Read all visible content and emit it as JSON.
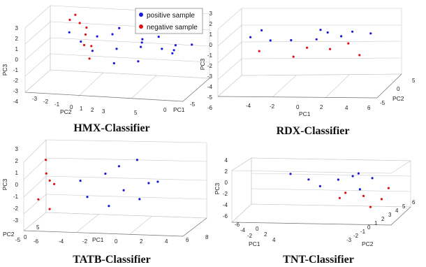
{
  "colors": {
    "positive": "#1a1ad6",
    "negative": "#e01010"
  },
  "legend": {
    "positive_label": "positive sample",
    "negative_label": "negative sample"
  },
  "chart_data": [
    {
      "type": "scatter",
      "title": "HMX-Classifier",
      "xlabel": "PC1",
      "ylabel": "PC2",
      "zlabel": "PC3",
      "xticks": [
        "-5",
        "0",
        "5"
      ],
      "yticks": [
        "-3",
        "-2",
        "-1",
        "0",
        "1",
        "2",
        "3"
      ],
      "zticks": [
        "-4",
        "-3",
        "-2",
        "-1",
        "0",
        "1",
        "2",
        "3"
      ],
      "xlim": [
        -5,
        5
      ],
      "ylim": [
        -3,
        3
      ],
      "zlim": [
        -4,
        3
      ],
      "legend_position": "top-right",
      "series": [
        {
          "name": "positive sample",
          "points": [
            [
              2.0,
              -1.5,
              1.5
            ],
            [
              3.0,
              -0.5,
              0.5
            ],
            [
              1.5,
              0.5,
              1.0
            ],
            [
              -1.0,
              -2.0,
              0.5
            ],
            [
              0.0,
              0.0,
              0.0
            ],
            [
              1.0,
              1.0,
              1.8
            ],
            [
              2.5,
              1.5,
              2.2
            ],
            [
              -2.0,
              -1.0,
              1.0
            ],
            [
              0.5,
              -2.5,
              -0.5
            ],
            [
              3.5,
              0.5,
              0.0
            ],
            [
              4.0,
              -1.0,
              1.2
            ],
            [
              -3.0,
              0.0,
              1.5
            ],
            [
              1.0,
              2.0,
              -0.5
            ],
            [
              2.0,
              2.5,
              0.5
            ],
            [
              -1.5,
              1.0,
              0.8
            ],
            [
              0.0,
              -1.0,
              2.0
            ],
            [
              3.0,
              2.0,
              -1.0
            ],
            [
              -0.5,
              2.5,
              1.2
            ],
            [
              4.5,
              1.0,
              0.5
            ],
            [
              1.5,
              -0.5,
              -1.0
            ]
          ]
        },
        {
          "name": "negative sample",
          "points": [
            [
              -2.5,
              2.0,
              0.5
            ],
            [
              -3.0,
              2.5,
              1.5
            ],
            [
              -2.0,
              1.5,
              -0.5
            ],
            [
              -3.5,
              2.0,
              2.0
            ],
            [
              -2.8,
              2.8,
              -1.0
            ],
            [
              -2.2,
              1.8,
              -2.0
            ],
            [
              -3.2,
              2.2,
              2.5
            ],
            [
              -2.6,
              2.6,
              1.0
            ]
          ]
        }
      ]
    },
    {
      "type": "scatter",
      "title": "RDX-Classifier",
      "xlabel": "PC1",
      "ylabel": "PC2",
      "zlabel": "PC3",
      "xticks": [
        "-4",
        "-2",
        "0",
        "2",
        "4",
        "6"
      ],
      "yticks": [
        "-5",
        "0",
        "5"
      ],
      "zticks": [
        "-6",
        "-5",
        "-4",
        "-3",
        "-2",
        "-1",
        "0",
        "1",
        "2",
        "3"
      ],
      "xlim": [
        -4,
        6
      ],
      "ylim": [
        -5,
        5
      ],
      "zlim": [
        -6,
        3
      ],
      "series": [
        {
          "name": "positive sample",
          "points": [
            [
              -2.0,
              0.0,
              1.5
            ],
            [
              0.0,
              -1.0,
              0.5
            ],
            [
              2.0,
              1.0,
              1.0
            ],
            [
              4.0,
              -2.0,
              2.0
            ],
            [
              -3.0,
              2.0,
              0.0
            ],
            [
              1.0,
              3.0,
              -0.5
            ],
            [
              3.0,
              0.0,
              0.8
            ],
            [
              5.0,
              -1.0,
              1.5
            ],
            [
              -1.0,
              -3.0,
              1.0
            ],
            [
              2.0,
              -2.0,
              2.2
            ]
          ]
        },
        {
          "name": "negative sample",
          "points": [
            [
              0.0,
              0.0,
              -2.0
            ],
            [
              2.0,
              2.0,
              -1.5
            ],
            [
              -2.0,
              -1.0,
              -1.0
            ],
            [
              4.0,
              1.0,
              -2.0
            ],
            [
              1.0,
              -1.0,
              -0.5
            ],
            [
              3.0,
              3.0,
              -1.0
            ]
          ]
        }
      ]
    },
    {
      "type": "scatter",
      "title": "TATB-Classifier",
      "xlabel": "PC1",
      "ylabel": "PC2",
      "zlabel": "PC3",
      "xticks": [
        "-6",
        "-4",
        "-2",
        "0",
        "2",
        "4",
        "6",
        "8"
      ],
      "yticks": [
        "-5",
        "0",
        "5"
      ],
      "zticks": [
        "-3",
        "-2",
        "-1",
        "0",
        "1",
        "2",
        "3"
      ],
      "xlim": [
        -6,
        8
      ],
      "ylim": [
        -5,
        5
      ],
      "zlim": [
        -3,
        3
      ],
      "series": [
        {
          "name": "positive sample",
          "points": [
            [
              -2.0,
              0.0,
              0.5
            ],
            [
              0.0,
              1.0,
              1.0
            ],
            [
              2.0,
              -1.0,
              0.0
            ],
            [
              4.0,
              0.0,
              0.5
            ],
            [
              1.0,
              2.0,
              1.5
            ],
            [
              -1.0,
              -2.0,
              -0.5
            ],
            [
              3.0,
              1.0,
              -1.0
            ],
            [
              5.0,
              -1.0,
              0.8
            ],
            [
              0.5,
              0.0,
              -1.5
            ],
            [
              2.5,
              2.5,
              2.0
            ]
          ]
        },
        {
          "name": "negative sample",
          "points": [
            [
              -5.0,
              0.0,
              1.0
            ],
            [
              -4.5,
              1.0,
              0.0
            ],
            [
              -5.5,
              -1.0,
              -1.0
            ],
            [
              -4.8,
              0.5,
              -2.0
            ],
            [
              -5.2,
              0.8,
              2.0
            ],
            [
              -4.6,
              -0.5,
              0.5
            ]
          ]
        }
      ]
    },
    {
      "type": "scatter",
      "title": "TNT-Classifier",
      "xlabel": "PC1",
      "ylabel": "PC2",
      "zlabel": "PC3",
      "xticks": [
        "-6",
        "-4",
        "-2",
        "0",
        "2",
        "4"
      ],
      "yticks": [
        "-3",
        "-2",
        "-1",
        "0",
        "1",
        "2",
        "3",
        "4",
        "5",
        "6"
      ],
      "zticks": [
        "-6",
        "-4",
        "-2",
        "0",
        "2",
        "4"
      ],
      "xlim": [
        -6,
        4
      ],
      "ylim": [
        -3,
        6
      ],
      "zlim": [
        -6,
        4
      ],
      "series": [
        {
          "name": "positive sample",
          "points": [
            [
              0.0,
              2.0,
              1.0
            ],
            [
              -2.0,
              3.0,
              0.5
            ],
            [
              1.0,
              4.0,
              1.5
            ],
            [
              -1.0,
              1.0,
              0.0
            ],
            [
              2.0,
              3.0,
              1.0
            ],
            [
              0.5,
              5.0,
              0.5
            ],
            [
              -3.0,
              2.0,
              2.0
            ],
            [
              1.5,
              1.0,
              -0.5
            ]
          ]
        },
        {
          "name": "negative sample",
          "points": [
            [
              2.0,
              -1.0,
              -1.0
            ],
            [
              3.0,
              0.0,
              -2.0
            ],
            [
              1.0,
              -2.0,
              0.0
            ],
            [
              2.5,
              -1.5,
              -3.0
            ],
            [
              3.5,
              -0.5,
              0.5
            ],
            [
              0.5,
              -1.0,
              -1.5
            ]
          ]
        }
      ]
    }
  ]
}
